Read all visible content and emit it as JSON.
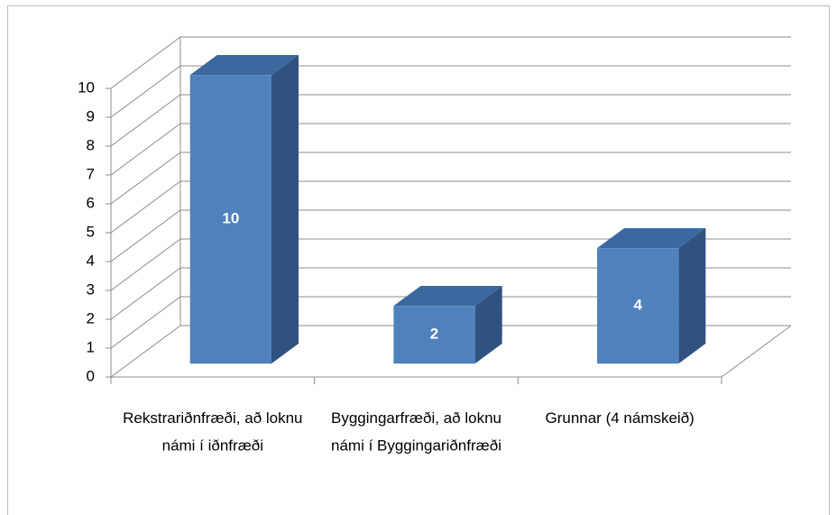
{
  "chart_data": {
    "type": "bar3d",
    "categories": [
      "Rekstrariðnfræði, að loknu námi í iðnfræði",
      "Byggingarfræði, að loknu námi í Byggingariðnfræði",
      "Grunnar (4 námskeið)"
    ],
    "values": [
      10,
      2,
      4
    ],
    "color": "#4f81bd",
    "ylim": [
      0,
      10
    ],
    "yticks": [
      0,
      1,
      2,
      3,
      4,
      5,
      6,
      7,
      8,
      9,
      10
    ],
    "grid": true
  }
}
